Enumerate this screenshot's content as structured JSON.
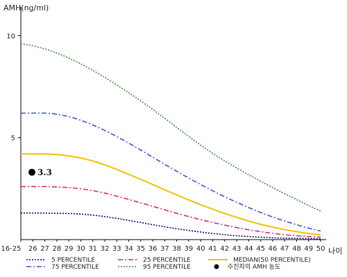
{
  "chart_data": {
    "type": "line",
    "ylabel": "AMH(ng/ml)",
    "xlabel": "나이",
    "title": "",
    "ylim": [
      0,
      11
    ],
    "yticks": [
      5,
      10
    ],
    "categories": [
      "16-25",
      "26",
      "27",
      "28",
      "29",
      "30",
      "31",
      "32",
      "33",
      "34",
      "35",
      "36",
      "37",
      "38",
      "39",
      "40",
      "41",
      "42",
      "43",
      "44",
      "45",
      "46",
      "47",
      "48",
      "49",
      "50"
    ],
    "grid": false,
    "legend_position": "bottom",
    "series": [
      {
        "name": "5 PERCENTILE",
        "color": "#000066",
        "dash": "2,2",
        "values": [
          1.3,
          1.3,
          1.3,
          1.29,
          1.28,
          1.25,
          1.2,
          1.13,
          1.04,
          0.94,
          0.84,
          0.73,
          0.63,
          0.53,
          0.45,
          0.37,
          0.3,
          0.24,
          0.19,
          0.15,
          0.12,
          0.09,
          0.07,
          0.06,
          0.05,
          0.04
        ]
      },
      {
        "name": "25 PERCENTILE",
        "color": "#e0207a",
        "dash": "7,3,2,3",
        "values": [
          2.6,
          2.6,
          2.6,
          2.58,
          2.55,
          2.49,
          2.4,
          2.28,
          2.13,
          1.97,
          1.8,
          1.63,
          1.46,
          1.29,
          1.13,
          0.98,
          0.84,
          0.71,
          0.59,
          0.48,
          0.39,
          0.31,
          0.24,
          0.19,
          0.15,
          0.12
        ]
      },
      {
        "name": "MEDIAN(50 PERCENTILE)",
        "color": "#f0c000",
        "dash": "",
        "values": [
          4.2,
          4.2,
          4.2,
          4.17,
          4.1,
          4.0,
          3.85,
          3.66,
          3.44,
          3.2,
          2.95,
          2.7,
          2.44,
          2.19,
          1.94,
          1.71,
          1.49,
          1.28,
          1.09,
          0.91,
          0.75,
          0.61,
          0.49,
          0.39,
          0.3,
          0.23
        ]
      },
      {
        "name": "75 PERCENTILE",
        "color": "#3a55c8",
        "dash": "7,3,2,3",
        "values": [
          6.2,
          6.2,
          6.2,
          6.15,
          6.03,
          5.85,
          5.62,
          5.35,
          5.05,
          4.73,
          4.39,
          4.04,
          3.69,
          3.35,
          3.02,
          2.7,
          2.39,
          2.1,
          1.83,
          1.57,
          1.33,
          1.11,
          0.91,
          0.73,
          0.56,
          0.42
        ]
      },
      {
        "name": "95 PERCENTILE",
        "color": "#3a8a3a",
        "dash": "2,2",
        "values": [
          9.6,
          9.5,
          9.35,
          9.15,
          8.9,
          8.62,
          8.3,
          7.95,
          7.58,
          7.2,
          6.8,
          6.38,
          5.95,
          5.5,
          5.06,
          4.63,
          4.23,
          3.86,
          3.51,
          3.18,
          2.86,
          2.55,
          2.25,
          1.96,
          1.67,
          1.4
        ]
      }
    ],
    "legend": [
      {
        "name": "5 PERCENTILE",
        "color": "#000066",
        "dash": "2,2"
      },
      {
        "name": "25 PERCENTILE",
        "color": "#e0207a",
        "dash": "7,3,2,3"
      },
      {
        "name": "MEDIAN(50 PERCENTILE)",
        "color": "#f0c000",
        "dash": ""
      },
      {
        "name": "75 PERCENTILE",
        "color": "#3a55c8",
        "dash": "7,3,2,3"
      },
      {
        "name": "95 PERCENTILE",
        "color": "#3a8a3a",
        "dash": "2,2"
      },
      {
        "name": "수진자의 AMH 농도",
        "marker": "dot",
        "color": "#000000"
      }
    ],
    "patient_point": {
      "x": "16-25",
      "y": 3.3,
      "label": "3.3",
      "color": "#000000"
    }
  }
}
